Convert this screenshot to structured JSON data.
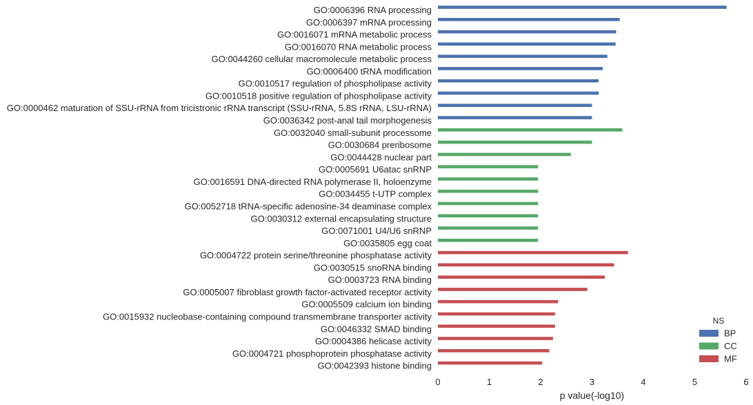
{
  "chart_data": {
    "type": "bar",
    "orientation": "horizontal",
    "xlabel": "p value(-log10)",
    "xlim": [
      0,
      6
    ],
    "xticks": [
      0,
      1,
      2,
      3,
      4,
      5,
      6
    ],
    "grid": false,
    "legend": {
      "title": "NS",
      "placement": "bottom-right",
      "entries": [
        {
          "name": "BP",
          "color": "#4C72B0"
        },
        {
          "name": "CC",
          "color": "#55A868"
        },
        {
          "name": "MF",
          "color": "#C44E52"
        }
      ]
    },
    "categories": [
      "GO:0006396 RNA processing",
      "GO:0006397 mRNA processing",
      "GO:0016071 mRNA metabolic process",
      "GO:0016070 RNA metabolic process",
      "GO:0044260 cellular macromolecule metabolic process",
      "GO:0006400 tRNA modification",
      "GO:0010517 regulation of phospholipase activity",
      "GO:0010518 positive regulation of phospholipase activity",
      "GO:0000462 maturation of SSU-rRNA from tricistronic rRNA transcript (SSU-rRNA, 5.8S rRNA, LSU-rRNA)",
      "GO:0036342 post-anal tail morphogenesis",
      "GO:0032040 small-subunit processome",
      "GO:0030684 preribosome",
      "GO:0044428 nuclear part",
      "GO:0005691 U6atac snRNP",
      "GO:0016591 DNA-directed RNA polymerase II, holoenzyme",
      "GO:0034455 t-UTP complex",
      "GO:0052718 tRNA-specific adenosine-34 deaminase complex",
      "GO:0030312 external encapsulating structure",
      "GO:0071001 U4/U6 snRNP",
      "GO:0035805 egg coat",
      "GO:0004722 protein serine/threonine phosphatase activity",
      "GO:0030515 snoRNA binding",
      "GO:0003723 RNA binding",
      "GO:0005007 fibroblast growth factor-activated receptor activity",
      "GO:0005509 calcium ion binding",
      "GO:0015932 nucleobase-containing compound transmembrane transporter activity",
      "GO:0046332 SMAD binding",
      "GO:0004386 helicase activity",
      "GO:0004721 phosphoprotein phosphatase activity",
      "GO:0042393 histone binding"
    ],
    "namespace": [
      "BP",
      "BP",
      "BP",
      "BP",
      "BP",
      "BP",
      "BP",
      "BP",
      "BP",
      "BP",
      "CC",
      "CC",
      "CC",
      "CC",
      "CC",
      "CC",
      "CC",
      "CC",
      "CC",
      "CC",
      "MF",
      "MF",
      "MF",
      "MF",
      "MF",
      "MF",
      "MF",
      "MF",
      "MF",
      "MF"
    ],
    "values": [
      5.62,
      3.54,
      3.47,
      3.46,
      3.3,
      3.21,
      3.13,
      3.13,
      3.0,
      3.0,
      3.59,
      3.0,
      2.59,
      1.95,
      1.95,
      1.95,
      1.95,
      1.95,
      1.95,
      1.95,
      3.7,
      3.43,
      3.25,
      2.91,
      2.34,
      2.28,
      2.28,
      2.24,
      2.17,
      2.03
    ]
  }
}
